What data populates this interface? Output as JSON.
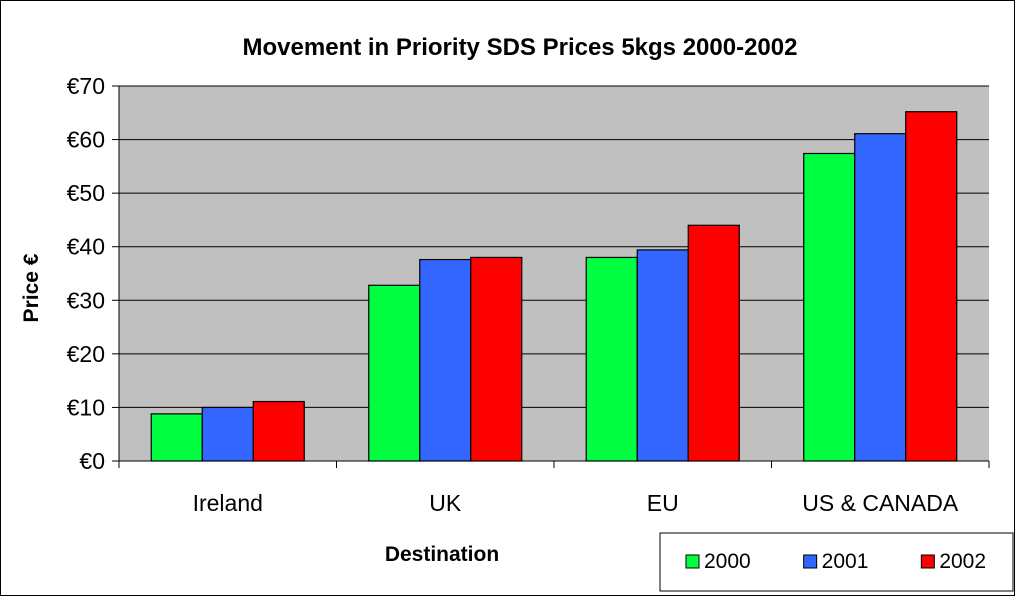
{
  "chart_data": {
    "type": "bar",
    "title": "Movement in Priority SDS Prices 5kgs 2000-2002",
    "xlabel": "Destination",
    "ylabel": "Price €",
    "categories": [
      "Ireland",
      "UK",
      "EU",
      "US & CANADA"
    ],
    "series": [
      {
        "name": "2000",
        "color": "#00ff40",
        "values": [
          8.8,
          32.8,
          38.0,
          57.4
        ]
      },
      {
        "name": "2001",
        "color": "#3366ff",
        "values": [
          10.0,
          37.6,
          39.4,
          61.1
        ]
      },
      {
        "name": "2002",
        "color": "#ff0000",
        "values": [
          11.1,
          38.0,
          44.0,
          65.2
        ]
      }
    ],
    "ylim": [
      0,
      70
    ],
    "yticks": [
      0,
      10,
      20,
      30,
      40,
      50,
      60,
      70
    ],
    "ytick_labels": [
      "€0",
      "€10",
      "€20",
      "€30",
      "€40",
      "€50",
      "€60",
      "€70"
    ],
    "plot_background": "#c0c0c0",
    "grid": true,
    "legend_position": "bottom-right"
  }
}
